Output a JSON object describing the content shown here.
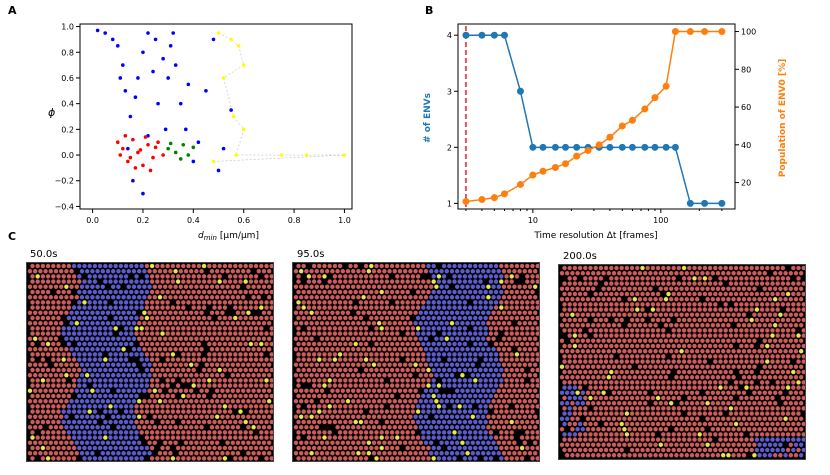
{
  "panels": {
    "a": "A",
    "b": "B",
    "c": "C"
  },
  "chart_data": [
    {
      "type": "scatter",
      "panel": "A",
      "xlabel_main": "d",
      "xlabel_sub": "min",
      "xlabel_unit": "[µm/µm]",
      "ylabel": "ϕ",
      "xlim": [
        -0.05,
        1.03
      ],
      "ylim": [
        -0.42,
        1.02
      ],
      "xticks": [
        0.0,
        0.2,
        0.4,
        0.6,
        0.8,
        1.0
      ],
      "xtick_labels": [
        "0.0",
        "0.2",
        "0.4",
        "0.6",
        "0.8",
        "1.0"
      ],
      "yticks": [
        -0.4,
        -0.2,
        0.0,
        0.2,
        0.4,
        0.6,
        0.8,
        1.0
      ],
      "ytick_labels": [
        "−0.4",
        "−0.2",
        "0.0",
        "0.2",
        "0.4",
        "0.6",
        "0.8",
        "1.0"
      ],
      "series": [
        {
          "name": "blue",
          "color": "#0000ff",
          "points": [
            [
              0.02,
              0.97
            ],
            [
              0.05,
              0.95
            ],
            [
              0.08,
              0.9
            ],
            [
              0.1,
              0.85
            ],
            [
              0.12,
              0.7
            ],
            [
              0.13,
              0.5
            ],
            [
              0.15,
              0.3
            ],
            [
              0.18,
              0.6
            ],
            [
              0.2,
              0.8
            ],
            [
              0.22,
              0.95
            ],
            [
              0.25,
              0.9
            ],
            [
              0.28,
              0.75
            ],
            [
              0.3,
              0.6
            ],
            [
              0.32,
              0.95
            ],
            [
              0.35,
              0.4
            ],
            [
              0.37,
              0.2
            ],
            [
              0.4,
              -0.05
            ],
            [
              0.42,
              0.1
            ],
            [
              0.45,
              0.5
            ],
            [
              0.48,
              0.9
            ],
            [
              0.5,
              -0.12
            ],
            [
              0.52,
              0.05
            ],
            [
              0.55,
              0.35
            ],
            [
              0.16,
              -0.2
            ],
            [
              0.2,
              -0.3
            ],
            [
              0.22,
              0.15
            ],
            [
              0.14,
              0.05
            ],
            [
              0.26,
              0.4
            ],
            [
              0.29,
              0.2
            ],
            [
              0.33,
              0.7
            ],
            [
              0.11,
              0.6
            ],
            [
              0.17,
              0.45
            ],
            [
              0.24,
              0.65
            ],
            [
              0.31,
              0.85
            ],
            [
              0.38,
              0.55
            ]
          ]
        },
        {
          "name": "red",
          "color": "#ff0000",
          "points": [
            [
              0.1,
              0.1
            ],
            [
              0.12,
              0.05
            ],
            [
              0.14,
              -0.05
            ],
            [
              0.16,
              0.12
            ],
            [
              0.18,
              0.02
            ],
            [
              0.2,
              -0.08
            ],
            [
              0.22,
              0.08
            ],
            [
              0.24,
              -0.02
            ],
            [
              0.26,
              0.1
            ],
            [
              0.28,
              0.0
            ],
            [
              0.13,
              0.15
            ],
            [
              0.17,
              -0.1
            ],
            [
              0.21,
              0.14
            ],
            [
              0.25,
              0.06
            ],
            [
              0.15,
              -0.02
            ],
            [
              0.19,
              0.04
            ],
            [
              0.23,
              -0.12
            ],
            [
              0.11,
              0.0
            ]
          ]
        },
        {
          "name": "green",
          "color": "#008000",
          "points": [
            [
              0.3,
              0.05
            ],
            [
              0.33,
              0.02
            ],
            [
              0.36,
              0.08
            ],
            [
              0.38,
              0.0
            ],
            [
              0.4,
              0.06
            ],
            [
              0.35,
              -0.03
            ],
            [
              0.31,
              0.09
            ]
          ]
        },
        {
          "name": "yellow",
          "color": "#ffff00",
          "points": [
            [
              0.5,
              0.95
            ],
            [
              0.55,
              0.9
            ],
            [
              0.58,
              0.85
            ],
            [
              0.6,
              0.7
            ],
            [
              0.52,
              0.6
            ],
            [
              0.56,
              0.3
            ],
            [
              0.6,
              0.2
            ],
            [
              0.57,
              0.0
            ],
            [
              0.75,
              0.0
            ],
            [
              0.85,
              0.0
            ],
            [
              1.0,
              0.0
            ],
            [
              0.48,
              -0.05
            ]
          ]
        }
      ]
    },
    {
      "type": "line",
      "panel": "B",
      "xlabel": "Time resolution Δt [frames]",
      "xscale": "log",
      "xlim": [
        2.6,
        380
      ],
      "ylabel_left": "# of ENVs",
      "ylabel_right": "Population of ENV0 [%]",
      "ylim_left": [
        0.9,
        4.2
      ],
      "ylim_right": [
        6.0,
        104.0
      ],
      "yticks_left": [
        1,
        2,
        3,
        4
      ],
      "yticks_right": [
        20,
        40,
        60,
        80,
        100
      ],
      "xticks": [
        10,
        100
      ],
      "xtick_labels": [
        "10",
        "100"
      ],
      "vline_x": 3,
      "vline_color": "#d62728",
      "series": [
        {
          "name": "# of ENVs",
          "axis": "left",
          "color": "#1f77b4",
          "x": [
            3,
            4,
            5,
            6,
            8,
            10,
            12,
            15,
            18,
            22,
            27,
            33,
            40,
            50,
            60,
            75,
            90,
            110,
            130,
            170,
            220,
            300
          ],
          "values": [
            4,
            4,
            4,
            4,
            3,
            2,
            2,
            2,
            2,
            2,
            2,
            2,
            2,
            2,
            2,
            2,
            2,
            2,
            2,
            1,
            1,
            1
          ]
        },
        {
          "name": "Population of ENV0 [%]",
          "axis": "right",
          "color": "#ff7f0e",
          "x": [
            3,
            4,
            5,
            6,
            8,
            10,
            12,
            15,
            18,
            22,
            27,
            33,
            40,
            50,
            60,
            75,
            90,
            110,
            130,
            170,
            220,
            300
          ],
          "values": [
            10,
            11,
            12,
            14,
            19,
            24,
            26,
            28,
            30,
            34,
            37,
            40,
            44,
            50,
            53,
            59,
            65,
            71,
            100,
            100,
            100,
            100
          ]
        }
      ]
    }
  ],
  "snapshots": [
    {
      "label": "50.0s",
      "band": [
        0.18,
        0.47
      ]
    },
    {
      "label": "95.0s",
      "band": [
        0.53,
        0.82
      ]
    },
    {
      "label": "200.0s",
      "band": null
    }
  ],
  "colors": {
    "blue_scatter": "#0000ff",
    "red_scatter": "#ff0000",
    "green_scatter": "#008000",
    "yellow_scatter": "#ffff00",
    "envs_line": "#1f77b4",
    "population_line": "#ff7f0e",
    "threshold_line": "#d62728",
    "cell_red": "#cd5c5c",
    "cell_blue": "#5c5ccd",
    "cell_yellow": "#e8e84a",
    "snapshot_bg": "#000000"
  }
}
